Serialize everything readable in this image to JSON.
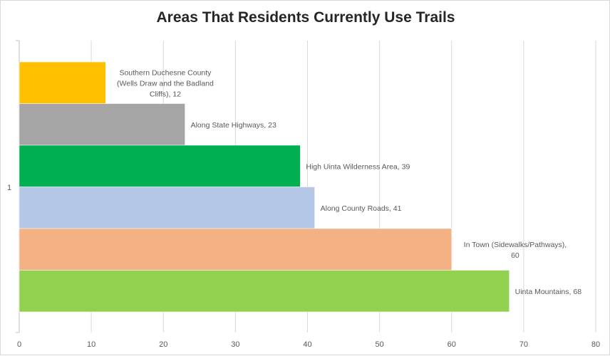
{
  "chart_data": {
    "type": "bar",
    "orientation": "horizontal",
    "title": "Areas That Residents Currently Use Trails",
    "xlim": [
      0,
      80
    ],
    "x_ticks": [
      0,
      10,
      20,
      30,
      40,
      50,
      60,
      70,
      80
    ],
    "category_axis_label": "1",
    "grid": true,
    "legend": "none",
    "series": [
      {
        "label_lines": [
          "Southern Duchesne County",
          "(Wells Draw and the Badland",
          "Cliffs), 12"
        ],
        "value": 12,
        "color": "#ffc000"
      },
      {
        "label_lines": [
          "Along State Highways, 23"
        ],
        "value": 23,
        "color": "#a5a5a5"
      },
      {
        "label_lines": [
          "High Uinta Wilderness Area, 39"
        ],
        "value": 39,
        "color": "#00b050"
      },
      {
        "label_lines": [
          "Along County Roads, 41"
        ],
        "value": 41,
        "color": "#b4c7e7"
      },
      {
        "label_lines": [
          "In Town (Sidewalks/Pathways),",
          "60"
        ],
        "value": 60,
        "color": "#f4b183"
      },
      {
        "label_lines": [
          "Uinta Mountains, 68"
        ],
        "value": 68,
        "color": "#92d050"
      }
    ]
  }
}
